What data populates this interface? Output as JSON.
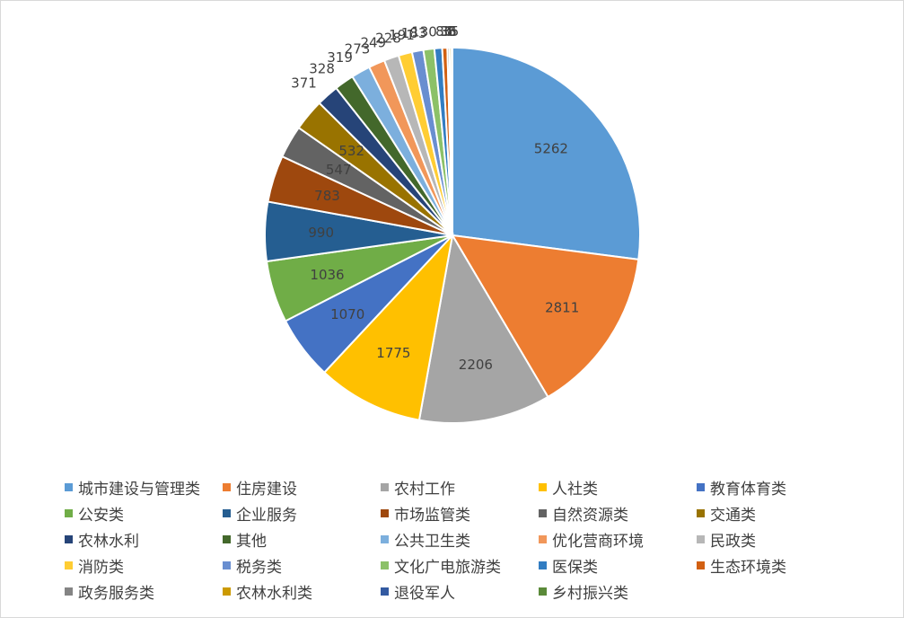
{
  "chart_data": {
    "type": "pie",
    "title": "",
    "series": [
      {
        "name": "城市建设与管理类",
        "value": 5262,
        "color": "#5B9BD5"
      },
      {
        "name": "住房建设",
        "value": 2811,
        "color": "#ED7D31"
      },
      {
        "name": "农村工作",
        "value": 2206,
        "color": "#A5A5A5"
      },
      {
        "name": "人社类",
        "value": 1775,
        "color": "#FFC000"
      },
      {
        "name": "教育体育类",
        "value": 1070,
        "color": "#4472C4"
      },
      {
        "name": "公安类",
        "value": 1036,
        "color": "#70AD47"
      },
      {
        "name": "企业服务",
        "value": 990,
        "color": "#255E91"
      },
      {
        "name": "市场监管类",
        "value": 783,
        "color": "#9E480E"
      },
      {
        "name": "自然资源类",
        "value": 547,
        "color": "#636363"
      },
      {
        "name": "交通类",
        "value": 532,
        "color": "#997300"
      },
      {
        "name": "农林水利",
        "value": 371,
        "color": "#264478"
      },
      {
        "name": "其他",
        "value": 328,
        "color": "#43682B"
      },
      {
        "name": "公共卫生类",
        "value": 319,
        "color": "#7CAFDD"
      },
      {
        "name": "优化营商环境",
        "value": 273,
        "color": "#F1975A"
      },
      {
        "name": "民政类",
        "value": 249,
        "color": "#B7B7B7"
      },
      {
        "name": "消防类",
        "value": 228,
        "color": "#FFCD33"
      },
      {
        "name": "税务类",
        "value": 191,
        "color": "#698ED0"
      },
      {
        "name": "文化广电旅游类",
        "value": 183,
        "color": "#8CC168"
      },
      {
        "name": "医保类",
        "value": 130,
        "color": "#327DC2"
      },
      {
        "name": "生态环境类",
        "value": 86,
        "color": "#D26012"
      },
      {
        "name": "政务服务类",
        "value": 36,
        "color": "#848484"
      },
      {
        "name": "农林水利类",
        "value": 35,
        "color": "#CC9A00"
      },
      {
        "name": "退役军人",
        "value": 8,
        "color": "#335AA1"
      },
      {
        "name": "乡村振兴类",
        "value": 5,
        "color": "#5A8A39"
      }
    ],
    "data_labels": true,
    "legend_position": "bottom",
    "label_colors": {
      "inside": "#404040",
      "outside": "#404040"
    }
  }
}
